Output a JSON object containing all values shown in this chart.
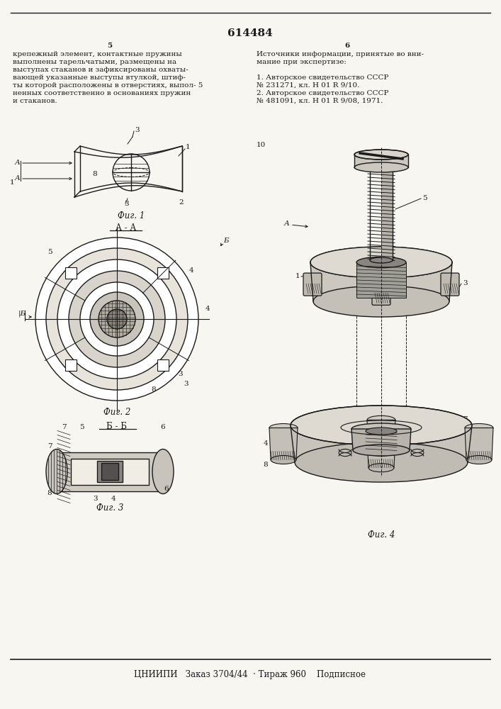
{
  "bg_color": "#f8f6f0",
  "patent_number": "614484",
  "page_col_left": "5",
  "page_col_right": "6",
  "text_left": [
    "крепежный элемент, контактные пружины",
    "выполнены тарельчатыми, размещены на",
    "выступах стаканов и зафиксированы охваты-",
    "вающей указанные выступы втулкой, штиф-",
    "ты которой расположены в отверстиях, выпол- 5",
    "ненных соответственно в основаниях пружин",
    "и стаканов."
  ],
  "text_right": [
    "Источники информации, принятые во вни-",
    "мание при экспертизе:",
    "",
    "1. Авторское свидетельство СССР",
    "№ 231271, кл. Н 01 R 9/10.",
    "2. Авторское свидетельство СССР",
    "№ 481091, кл. Н 01 R 9/08, 1971."
  ],
  "fig1_caption": "Фиг. 1",
  "fig2_caption": "Фиг. 2",
  "fig3_caption": "Фиг. 3",
  "fig4_caption": "Фиг. 4",
  "section_aa": "А - А",
  "section_bb": "Б - Б",
  "label_10": "10",
  "footer": "ЦНИИПИ   Заказ 3704/44  · Тираж 960    Подписное",
  "line_color": "#1a1a1a",
  "text_color": "#1a1a1a",
  "font_size_body": 7.5,
  "font_size_label": 7.5,
  "font_size_caption": 8.5,
  "font_size_patent": 11,
  "font_size_footer": 8.5
}
